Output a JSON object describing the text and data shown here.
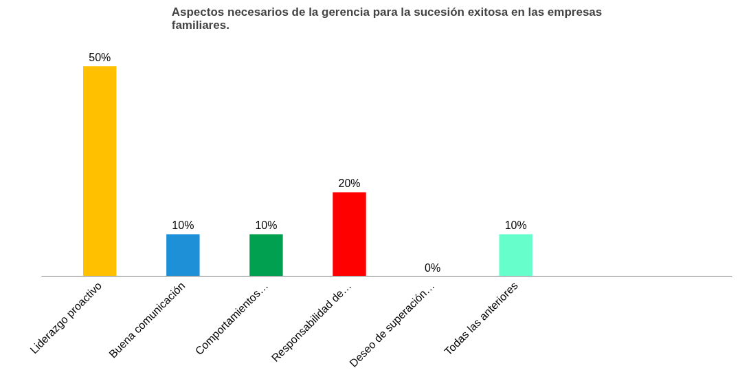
{
  "chart_data": {
    "type": "bar",
    "title": "Aspectos necesarios de la gerencia para la sucesión exitosa en las empresas familiares.",
    "categories": [
      "Liderazgo proactivo",
      "Buena comunicación",
      "Comportamientos…",
      "Responsabilidad de…",
      "Deseo de superación…",
      "Todas las anteriores"
    ],
    "values": [
      50,
      10,
      10,
      20,
      0,
      10
    ],
    "colors": [
      "#ffc000",
      "#1e90d8",
      "#00a050",
      "#ff0000",
      "#7030a0",
      "#66ffcc"
    ],
    "value_labels": [
      "50%",
      "10%",
      "10%",
      "20%",
      "0%",
      "10%"
    ],
    "grid": false,
    "tick_labels": "x"
  }
}
